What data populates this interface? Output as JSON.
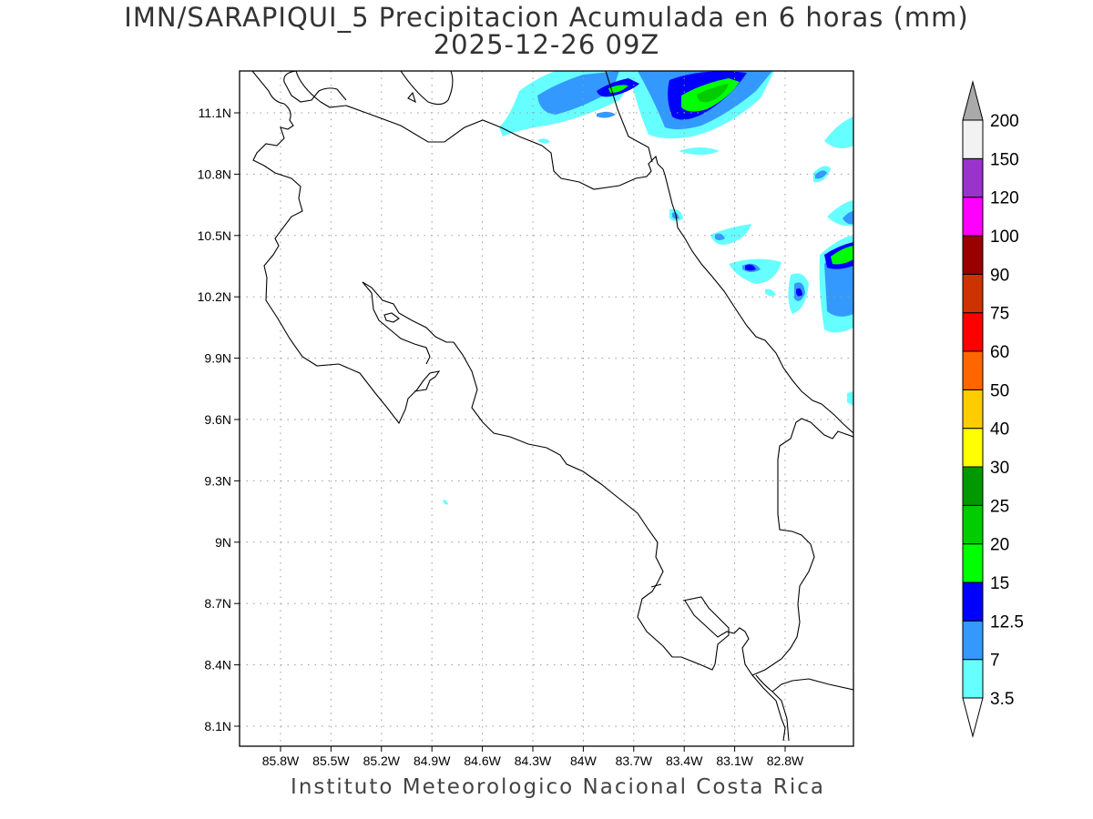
{
  "title_line1": "IMN/SARAPIQUI_5 Precipitacion Acumulada en 6 horas (mm)",
  "title_line2": "2025-12-26 09Z",
  "footer": "Instituto Meteorologico Nacional Costa Rica",
  "lon_ticks": [
    {
      "v": -85.8,
      "label": "85.8W"
    },
    {
      "v": -85.5,
      "label": "85.5W"
    },
    {
      "v": -85.2,
      "label": "85.2W"
    },
    {
      "v": -84.9,
      "label": "84.9W"
    },
    {
      "v": -84.6,
      "label": "84.6W"
    },
    {
      "v": -84.3,
      "label": "84.3W"
    },
    {
      "v": -84.0,
      "label": "84W"
    },
    {
      "v": -83.7,
      "label": "83.7W"
    },
    {
      "v": -83.4,
      "label": "83.4W"
    },
    {
      "v": -83.1,
      "label": "83.1W"
    },
    {
      "v": -82.8,
      "label": "82.8W"
    }
  ],
  "lat_ticks": [
    {
      "v": 11.1,
      "label": "11.1N"
    },
    {
      "v": 10.8,
      "label": "10.8N"
    },
    {
      "v": 10.5,
      "label": "10.5N"
    },
    {
      "v": 10.2,
      "label": "10.2N"
    },
    {
      "v": 9.9,
      "label": "9.9N"
    },
    {
      "v": 9.6,
      "label": "9.6N"
    },
    {
      "v": 9.3,
      "label": "9.3N"
    },
    {
      "v": 9.0,
      "label": "9N"
    },
    {
      "v": 8.7,
      "label": "8.7N"
    },
    {
      "v": 8.4,
      "label": "8.4N"
    },
    {
      "v": 8.1,
      "label": "8.1N"
    }
  ],
  "colorbar": [
    {
      "label": "3.5",
      "color": "#66ffff"
    },
    {
      "label": "7",
      "color": "#3399ff"
    },
    {
      "label": "12.5",
      "color": "#0000ff"
    },
    {
      "label": "15",
      "color": "#00ff00"
    },
    {
      "label": "20",
      "color": "#00cc00"
    },
    {
      "label": "25",
      "color": "#009900"
    },
    {
      "label": "30",
      "color": "#ffff00"
    },
    {
      "label": "40",
      "color": "#ffcc00"
    },
    {
      "label": "50",
      "color": "#ff6600"
    },
    {
      "label": "60",
      "color": "#ff0000"
    },
    {
      "label": "75",
      "color": "#cc3300"
    },
    {
      "label": "90",
      "color": "#990000"
    },
    {
      "label": "100",
      "color": "#ff00ff"
    },
    {
      "label": "120",
      "color": "#9933cc"
    },
    {
      "label": "150",
      "color": "#f2f2f2"
    },
    {
      "label": "200",
      "color": "#aaaaaa"
    }
  ],
  "colors": {
    "coast": "#000000",
    "grid": "#999999"
  }
}
